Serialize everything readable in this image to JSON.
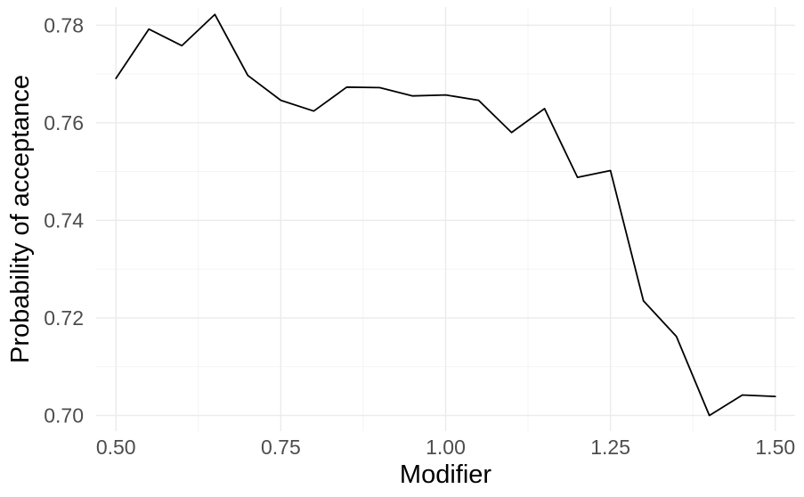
{
  "chart_data": {
    "type": "line",
    "title": "",
    "xlabel": "Modifier",
    "ylabel": "Probability of acceptance",
    "xlim": [
      0.47,
      1.53
    ],
    "ylim": [
      0.6968,
      0.7837
    ],
    "x_ticks": [
      {
        "value": 0.5,
        "label": "0.50"
      },
      {
        "value": 0.75,
        "label": "0.75"
      },
      {
        "value": 1.0,
        "label": "1.00"
      },
      {
        "value": 1.25,
        "label": "1.25"
      },
      {
        "value": 1.5,
        "label": "1.50"
      }
    ],
    "x_minor": [
      0.625,
      0.875,
      1.125,
      1.375
    ],
    "y_ticks": [
      {
        "value": 0.7,
        "label": "0.70"
      },
      {
        "value": 0.72,
        "label": "0.72"
      },
      {
        "value": 0.74,
        "label": "0.74"
      },
      {
        "value": 0.76,
        "label": "0.76"
      },
      {
        "value": 0.78,
        "label": "0.78"
      }
    ],
    "y_minor": [
      0.71,
      0.73,
      0.75,
      0.77
    ],
    "grid": true,
    "legend": "none",
    "series": [
      {
        "color": "#000000",
        "x": [
          0.5,
          0.55,
          0.6,
          0.65,
          0.7,
          0.75,
          0.8,
          0.85,
          0.9,
          0.95,
          1.0,
          1.05,
          1.1,
          1.15,
          1.2,
          1.25,
          1.3,
          1.35,
          1.4,
          1.45,
          1.5
        ],
        "y": [
          0.7691,
          0.7792,
          0.7758,
          0.7822,
          0.7697,
          0.7646,
          0.7624,
          0.7673,
          0.7672,
          0.7655,
          0.7657,
          0.7646,
          0.758,
          0.7629,
          0.7488,
          0.7502,
          0.7235,
          0.7162,
          0.7,
          0.7042,
          0.7039
        ]
      }
    ]
  }
}
